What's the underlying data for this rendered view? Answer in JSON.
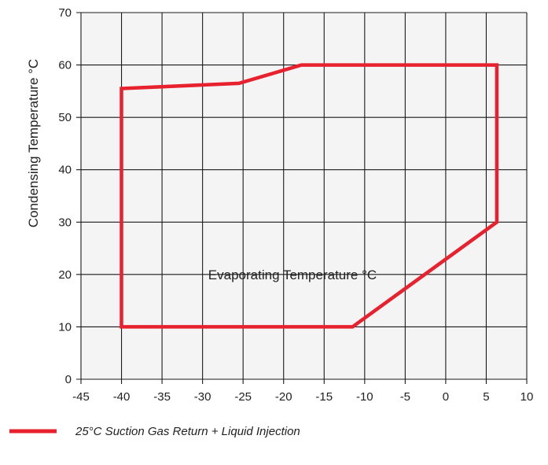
{
  "chart_data": {
    "type": "line",
    "title": "",
    "xlabel": "Evaporating Temperature °C",
    "ylabel": "Condensing Temperature °C",
    "xlim": [
      -45,
      10
    ],
    "ylim": [
      0,
      70
    ],
    "xticks": [
      -45,
      -40,
      -35,
      -30,
      -25,
      -20,
      -15,
      -10,
      -5,
      0,
      5,
      10
    ],
    "yticks": [
      0,
      10,
      20,
      30,
      40,
      50,
      60,
      70
    ],
    "grid": true,
    "legend_position": "bottom-left",
    "series": [
      {
        "name": "25°C Suction Gas Return + Liquid Injection",
        "color": "#e8212f",
        "closed": true,
        "points": [
          [
            -40,
            10
          ],
          [
            -40,
            55.5
          ],
          [
            -25.5,
            56.5
          ],
          [
            -17.8,
            60
          ],
          [
            6.3,
            60
          ],
          [
            6.3,
            30
          ],
          [
            -11.5,
            10
          ]
        ]
      }
    ]
  },
  "colors": {
    "plot_background": "#f4f4f4",
    "grid": "#1a1a1a",
    "series": "#e8212f"
  }
}
